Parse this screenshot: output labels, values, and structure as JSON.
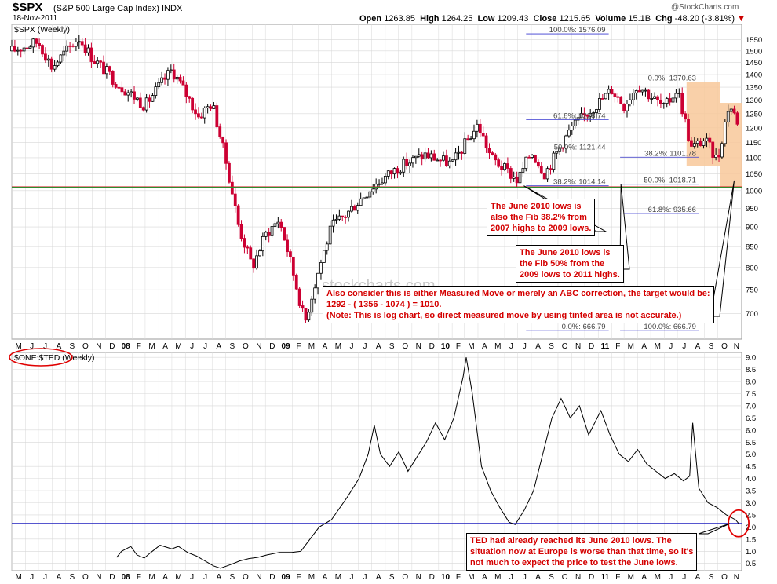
{
  "header": {
    "symbol": "$SPX",
    "name": "(S&P 500 Large Cap Index) INDX",
    "date": "18-Nov-2011",
    "brand": "@StockCharts.com",
    "open_label": "Open",
    "open": "1263.85",
    "high_label": "High",
    "high": "1264.25",
    "low_label": "Low",
    "low": "1209.43",
    "close_label": "Close",
    "close": "1215.65",
    "volume_label": "Volume",
    "volume": "15.1B",
    "chg_label": "Chg",
    "chg": "-48.20 (-3.81%)"
  },
  "chart_data": [
    {
      "type": "candlestick",
      "panel_label": "$SPX (Weekly)",
      "scale": "log",
      "ylim": [
        650,
        1620
      ],
      "y_ticks": [
        700,
        750,
        800,
        850,
        900,
        950,
        1000,
        1050,
        1100,
        1150,
        1200,
        1250,
        1300,
        1350,
        1400,
        1450,
        1500,
        1550
      ],
      "x_ticks": [
        "M",
        "J",
        "J",
        "A",
        "S",
        "O",
        "N",
        "D",
        "08",
        "F",
        "M",
        "A",
        "M",
        "J",
        "J",
        "A",
        "S",
        "O",
        "N",
        "D",
        "09",
        "F",
        "M",
        "A",
        "M",
        "J",
        "J",
        "A",
        "S",
        "O",
        "N",
        "D",
        "10",
        "F",
        "M",
        "A",
        "M",
        "J",
        "J",
        "A",
        "S",
        "O",
        "N",
        "D",
        "11",
        "F",
        "M",
        "A",
        "M",
        "J",
        "J",
        "A",
        "S",
        "O",
        "N"
      ],
      "price_path": [
        {
          "date": "2007-05",
          "value": 1500
        },
        {
          "date": "2007-07",
          "value": 1540
        },
        {
          "date": "2007-08",
          "value": 1430
        },
        {
          "date": "2007-10",
          "value": 1560
        },
        {
          "date": "2007-11",
          "value": 1470
        },
        {
          "date": "2008-01",
          "value": 1360
        },
        {
          "date": "2008-03",
          "value": 1280
        },
        {
          "date": "2008-05",
          "value": 1420
        },
        {
          "date": "2008-07",
          "value": 1240
        },
        {
          "date": "2008-08",
          "value": 1290
        },
        {
          "date": "2008-10",
          "value": 900
        },
        {
          "date": "2008-11",
          "value": 800
        },
        {
          "date": "2008-12",
          "value": 880
        },
        {
          "date": "2009-01",
          "value": 920
        },
        {
          "date": "2009-03",
          "value": 680
        },
        {
          "date": "2009-05",
          "value": 900
        },
        {
          "date": "2009-06",
          "value": 930
        },
        {
          "date": "2009-08",
          "value": 1010
        },
        {
          "date": "2009-10",
          "value": 1070
        },
        {
          "date": "2009-12",
          "value": 1110
        },
        {
          "date": "2010-02",
          "value": 1080
        },
        {
          "date": "2010-04",
          "value": 1210
        },
        {
          "date": "2010-05",
          "value": 1100
        },
        {
          "date": "2010-07",
          "value": 1030
        },
        {
          "date": "2010-08",
          "value": 1120
        },
        {
          "date": "2010-09",
          "value": 1050
        },
        {
          "date": "2010-11",
          "value": 1200
        },
        {
          "date": "2011-01",
          "value": 1290
        },
        {
          "date": "2011-02",
          "value": 1340
        },
        {
          "date": "2011-03",
          "value": 1280
        },
        {
          "date": "2011-04",
          "value": 1360
        },
        {
          "date": "2011-06",
          "value": 1270
        },
        {
          "date": "2011-07",
          "value": 1345
        },
        {
          "date": "2011-08",
          "value": 1130
        },
        {
          "date": "2011-09",
          "value": 1160
        },
        {
          "date": "2011-10",
          "value": 1090
        },
        {
          "date": "2011-10-27",
          "value": 1285
        },
        {
          "date": "2011-11-18",
          "value": 1216
        }
      ],
      "horizontal_lines": [
        {
          "value": 1010,
          "color": "#2e8b2e"
        }
      ],
      "fib_from_2007_high": [
        {
          "label": "100.0%: 1576.09",
          "value": 1576.09
        },
        {
          "label": "61.8%: 1228.74",
          "value": 1228.74
        },
        {
          "label": "50.0%: 1121.44",
          "value": 1121.44
        },
        {
          "label": "38.2%: 1014.14",
          "value": 1014.14
        },
        {
          "label": "0.0%: 666.79",
          "value": 666.79
        }
      ],
      "fib_from_2011_high": [
        {
          "label": "0.0%: 1370.63",
          "value": 1370.63
        },
        {
          "label": "38.2%: 1101.78",
          "value": 1101.78
        },
        {
          "label": "50.0%: 1018.71",
          "value": 1018.71
        },
        {
          "label": "61.8%: 935.66",
          "value": 935.66
        },
        {
          "label": "100.0%: 666.79",
          "value": 666.79
        }
      ],
      "tinted_areas": [
        {
          "from": "2011-07-22",
          "to": "2011-10-07",
          "low": 1075,
          "high": 1370,
          "color": "#f8c89a"
        },
        {
          "from": "2011-10-07",
          "to": "2011-11-25",
          "low": 1010,
          "high": 1290,
          "color": "#f8c89a"
        }
      ],
      "watermark": "stockcharts.com"
    },
    {
      "type": "line",
      "panel_label": "$ONE:$TED (Weekly)",
      "ylim": [
        0.2,
        9.2
      ],
      "y_ticks": [
        0.5,
        1.0,
        1.5,
        2.0,
        2.5,
        3.0,
        3.5,
        4.0,
        4.5,
        5.0,
        5.5,
        6.0,
        6.5,
        7.0,
        7.5,
        8.0,
        8.5,
        9.0
      ],
      "x_ticks": [
        "M",
        "J",
        "J",
        "A",
        "S",
        "O",
        "N",
        "D",
        "08",
        "F",
        "M",
        "A",
        "M",
        "J",
        "J",
        "A",
        "S",
        "O",
        "N",
        "D",
        "09",
        "F",
        "M",
        "A",
        "M",
        "J",
        "J",
        "A",
        "S",
        "O",
        "N",
        "D",
        "10",
        "F",
        "M",
        "A",
        "M",
        "J",
        "J",
        "A",
        "S",
        "O",
        "N",
        "D",
        "11",
        "F",
        "M",
        "A",
        "M",
        "J",
        "J",
        "A",
        "S",
        "O",
        "N"
      ],
      "points": [
        {
          "date": "2007-12-27",
          "value": 0.75
        },
        {
          "date": "2008-01-07",
          "value": 1.0
        },
        {
          "date": "2008-01-28",
          "value": 1.2
        },
        {
          "date": "2008-02-11",
          "value": 0.85
        },
        {
          "date": "2008-02-28",
          "value": 0.72
        },
        {
          "date": "2008-03-14",
          "value": 0.95
        },
        {
          "date": "2008-04-04",
          "value": 1.25
        },
        {
          "date": "2008-05-01",
          "value": 1.1
        },
        {
          "date": "2008-05-16",
          "value": 1.2
        },
        {
          "date": "2008-06-06",
          "value": 0.95
        },
        {
          "date": "2008-06-27",
          "value": 0.8
        },
        {
          "date": "2008-08-04",
          "value": 0.4
        },
        {
          "date": "2008-08-20",
          "value": 0.3
        },
        {
          "date": "2008-09-12",
          "value": 0.45
        },
        {
          "date": "2008-10-03",
          "value": 0.6
        },
        {
          "date": "2008-10-24",
          "value": 0.7
        },
        {
          "date": "2008-11-14",
          "value": 0.75
        },
        {
          "date": "2008-12-05",
          "value": 0.85
        },
        {
          "date": "2009-01-02",
          "value": 0.95
        },
        {
          "date": "2009-01-30",
          "value": 0.95
        },
        {
          "date": "2009-02-20",
          "value": 1.0
        },
        {
          "date": "2009-03-13",
          "value": 1.5
        },
        {
          "date": "2009-04-03",
          "value": 2.0
        },
        {
          "date": "2009-05-01",
          "value": 2.3
        },
        {
          "date": "2009-06-05",
          "value": 3.2
        },
        {
          "date": "2009-07-03",
          "value": 4.0
        },
        {
          "date": "2009-07-24",
          "value": 5.0
        },
        {
          "date": "2009-08-07",
          "value": 6.2
        },
        {
          "date": "2009-08-21",
          "value": 5.0
        },
        {
          "date": "2009-09-11",
          "value": 4.5
        },
        {
          "date": "2009-10-02",
          "value": 5.1
        },
        {
          "date": "2009-10-23",
          "value": 4.3
        },
        {
          "date": "2009-11-13",
          "value": 4.9
        },
        {
          "date": "2009-12-04",
          "value": 5.5
        },
        {
          "date": "2009-12-25",
          "value": 6.3
        },
        {
          "date": "2010-01-15",
          "value": 5.6
        },
        {
          "date": "2010-02-05",
          "value": 6.5
        },
        {
          "date": "2010-02-26",
          "value": 8.2
        },
        {
          "date": "2010-03-05",
          "value": 9.0
        },
        {
          "date": "2010-03-19",
          "value": 7.5
        },
        {
          "date": "2010-04-09",
          "value": 4.5
        },
        {
          "date": "2010-04-30",
          "value": 3.5
        },
        {
          "date": "2010-05-21",
          "value": 2.8
        },
        {
          "date": "2010-06-11",
          "value": 2.2
        },
        {
          "date": "2010-06-25",
          "value": 2.1
        },
        {
          "date": "2010-07-16",
          "value": 2.7
        },
        {
          "date": "2010-08-06",
          "value": 3.5
        },
        {
          "date": "2010-08-27",
          "value": 5.0
        },
        {
          "date": "2010-09-17",
          "value": 6.5
        },
        {
          "date": "2010-10-08",
          "value": 7.3
        },
        {
          "date": "2010-10-29",
          "value": 6.5
        },
        {
          "date": "2010-11-19",
          "value": 7.0
        },
        {
          "date": "2010-12-10",
          "value": 5.8
        },
        {
          "date": "2011-01-07",
          "value": 6.8
        },
        {
          "date": "2011-01-28",
          "value": 5.8
        },
        {
          "date": "2011-02-18",
          "value": 5.0
        },
        {
          "date": "2011-03-11",
          "value": 4.7
        },
        {
          "date": "2011-04-01",
          "value": 5.2
        },
        {
          "date": "2011-04-22",
          "value": 4.6
        },
        {
          "date": "2011-05-13",
          "value": 4.3
        },
        {
          "date": "2011-06-03",
          "value": 4.0
        },
        {
          "date": "2011-06-24",
          "value": 4.2
        },
        {
          "date": "2011-07-15",
          "value": 3.9
        },
        {
          "date": "2011-07-29",
          "value": 4.1
        },
        {
          "date": "2011-08-05",
          "value": 6.3
        },
        {
          "date": "2011-08-19",
          "value": 3.6
        },
        {
          "date": "2011-09-09",
          "value": 3.0
        },
        {
          "date": "2011-09-30",
          "value": 2.8
        },
        {
          "date": "2011-10-21",
          "value": 2.5
        },
        {
          "date": "2011-11-11",
          "value": 2.3
        },
        {
          "date": "2011-11-18",
          "value": 2.15
        }
      ],
      "horizontal_lines": [
        {
          "value": 2.15,
          "color": "#1f1fbf"
        }
      ]
    }
  ],
  "annotations": {
    "note1": [
      "The June 2010 lows is",
      "also the Fib 38.2% from",
      "2007 highs to 2009 lows."
    ],
    "note2": [
      "The June 2010 lows is",
      "the Fib 50% from the",
      "2009 lows to 2011 highs."
    ],
    "note3": [
      "Also consider this is either Measured Move or merely an ABC correction, the target would be:",
      "1292 - ( 1356 - 1074 ) = 1010.",
      "(Note: This is log chart, so direct measured move by using tinted area is not accurate.)"
    ],
    "note4": [
      "TED had already reached its June 2010 lows. The",
      "situation now at Europe is worse than that time, so it's",
      "not much to expect the price to test the June lows."
    ]
  },
  "colors": {
    "up": "#000000",
    "down": "#cc0033",
    "grid": "#d8d8d8",
    "annotation_text": "#d40000",
    "highlight_circle": "#e00000"
  }
}
